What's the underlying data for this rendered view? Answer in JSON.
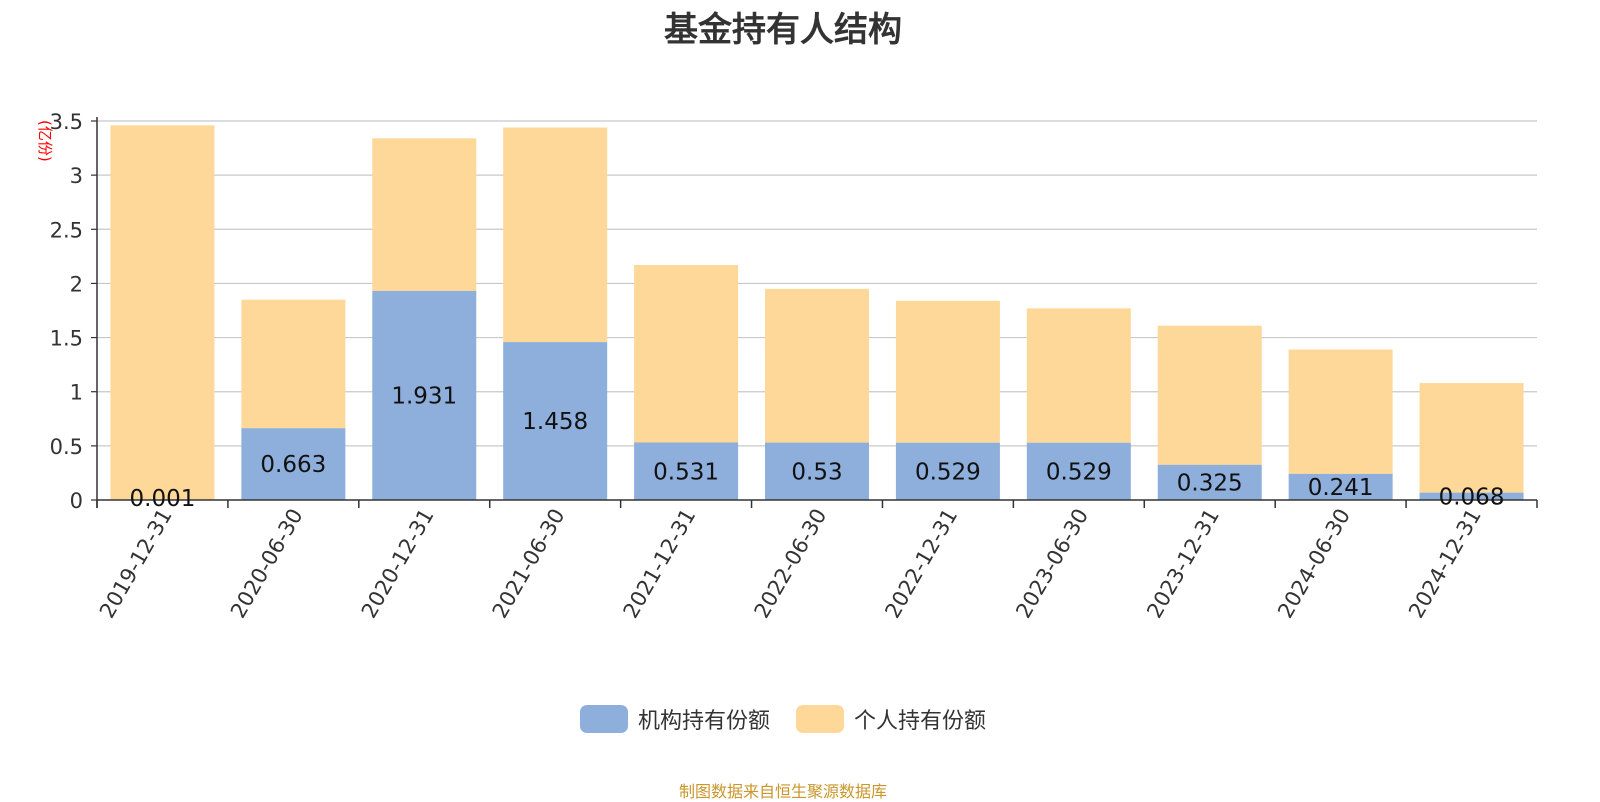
{
  "title": "基金持有人结构",
  "unit_label": "(亿份)",
  "source_note": "制图数据来自恒生聚源数据库",
  "colors": {
    "institutional": "#8eaedc",
    "individual": "#fdd898",
    "grid": "#c8c8c8",
    "axis": "#333333"
  },
  "legend": [
    {
      "label": "机构持有份额",
      "color": "#8eaedc"
    },
    {
      "label": "个人持有份额",
      "color": "#fdd898"
    }
  ],
  "chart_data": {
    "type": "bar",
    "stacked": true,
    "categories": [
      "2019-12-31",
      "2020-06-30",
      "2020-12-31",
      "2021-06-30",
      "2021-12-31",
      "2022-06-30",
      "2022-12-31",
      "2023-06-30",
      "2023-12-31",
      "2024-06-30",
      "2024-12-31"
    ],
    "series": [
      {
        "name": "机构持有份额",
        "values": [
          0.001,
          0.663,
          1.931,
          1.458,
          0.531,
          0.53,
          0.529,
          0.529,
          0.325,
          0.241,
          0.068
        ],
        "labels": [
          "0.001",
          "0.663",
          "1.931",
          "1.458",
          "0.531",
          "0.53",
          "0.529",
          "0.529",
          "0.325",
          "0.241",
          "0.068"
        ]
      },
      {
        "name": "个人持有份额",
        "values": [
          3.459,
          1.187,
          1.409,
          1.982,
          1.639,
          1.42,
          1.311,
          1.241,
          1.285,
          1.149,
          1.012
        ]
      }
    ],
    "ylabel": "(亿份)",
    "ylim": [
      0,
      3.5
    ],
    "yticks": [
      "0",
      "0.5",
      "1",
      "1.5",
      "2",
      "2.5",
      "3",
      "3.5"
    ],
    "grid": true,
    "legend_position": "bottom"
  }
}
